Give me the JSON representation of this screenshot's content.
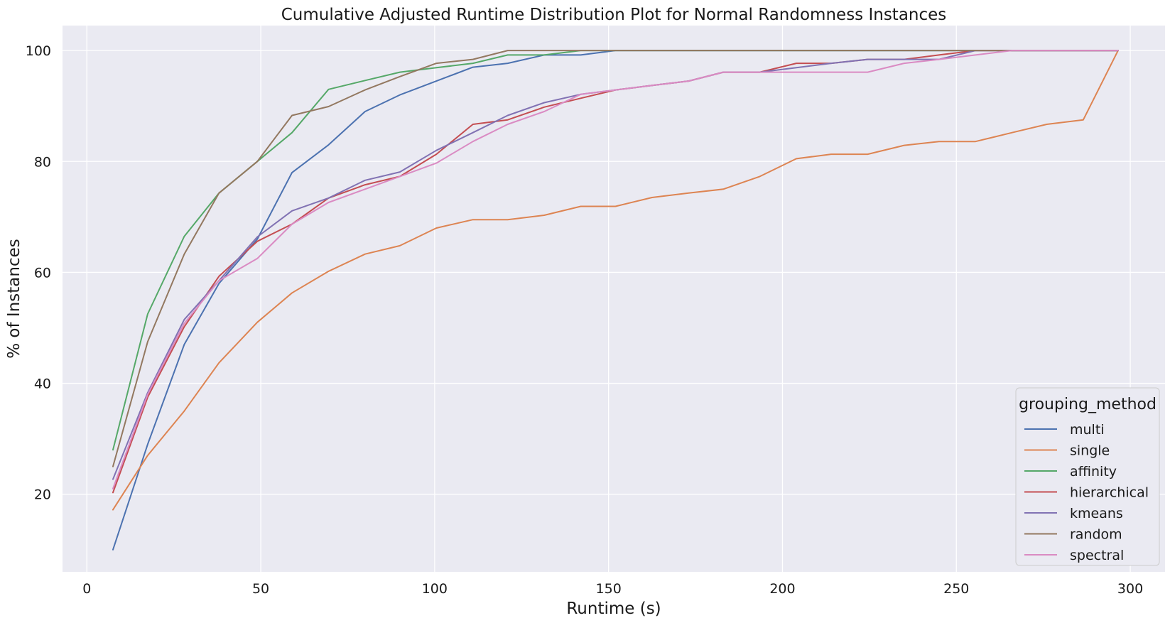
{
  "chart_data": {
    "type": "line",
    "title": "Cumulative Adjusted Runtime Distribution Plot for Normal Randomness Instances",
    "xlabel": "Runtime (s)",
    "ylabel": "% of Instances",
    "xlim": [
      -7,
      310
    ],
    "ylim": [
      6,
      104.5
    ],
    "xticks": [
      0,
      50,
      100,
      150,
      200,
      250,
      300
    ],
    "yticks": [
      20,
      40,
      60,
      80,
      100
    ],
    "grid": true,
    "background": "#eaeaf2",
    "gridcolor": "#ffffff",
    "legend": {
      "title": "grouping_method",
      "placement": "bottom-right"
    },
    "x": [
      7.5,
      17.5,
      28,
      38,
      49,
      59,
      69.5,
      80,
      90,
      100.5,
      111,
      121,
      131.5,
      142,
      152,
      162.5,
      173,
      183,
      193.5,
      204,
      214,
      224.5,
      235,
      245,
      255.5,
      266,
      276,
      286.5,
      296.5
    ],
    "series": [
      {
        "name": "multi",
        "color": "#4c72b0",
        "values": [
          10,
          29,
          47,
          58,
          66,
          78,
          83,
          89,
          92,
          94.5,
          97,
          97.7,
          99.2,
          99.2,
          100,
          100,
          100,
          100,
          100,
          100,
          100,
          100,
          100,
          100,
          100,
          100,
          100,
          100,
          100
        ]
      },
      {
        "name": "single",
        "color": "#dd8452",
        "values": [
          17.2,
          27,
          35,
          43.7,
          51,
          56.3,
          60.2,
          63.3,
          64.8,
          68,
          69.5,
          69.5,
          70.3,
          71.9,
          71.9,
          73.5,
          74.3,
          75,
          77.3,
          80.5,
          81.3,
          81.3,
          82.9,
          83.6,
          83.6,
          85.2,
          86.7,
          87.5,
          100
        ]
      },
      {
        "name": "affinity",
        "color": "#55a868",
        "values": [
          28,
          52.5,
          66.5,
          74.3,
          80,
          85.2,
          93,
          94.6,
          96.1,
          96.9,
          97.7,
          99.2,
          99.2,
          100,
          100,
          100,
          100,
          100,
          100,
          100,
          100,
          100,
          100,
          100,
          100,
          100,
          100,
          100,
          100
        ]
      },
      {
        "name": "hierarchical",
        "color": "#c44e52",
        "values": [
          20.3,
          37.5,
          50.2,
          59.3,
          65.6,
          68.7,
          73.4,
          75.8,
          77.3,
          81.3,
          86.7,
          87.5,
          89.8,
          91.4,
          92.9,
          93.7,
          94.5,
          96.1,
          96.1,
          97.7,
          97.7,
          98.4,
          98.4,
          99.2,
          100,
          100,
          100,
          100,
          100
        ]
      },
      {
        "name": "kmeans",
        "color": "#8172b3",
        "values": [
          22.7,
          38.3,
          51.5,
          58.5,
          66.4,
          71.1,
          73.4,
          76.6,
          78.1,
          82,
          85.2,
          88.3,
          90.6,
          92.1,
          92.9,
          93.7,
          94.5,
          96.1,
          96.1,
          96.9,
          97.7,
          98.4,
          98.4,
          98.4,
          100,
          100,
          100,
          100,
          100
        ]
      },
      {
        "name": "random",
        "color": "#937860",
        "values": [
          25,
          47.5,
          63.3,
          74.3,
          80,
          88.3,
          89.9,
          92.9,
          95.3,
          97.7,
          98.4,
          100,
          100,
          100,
          100,
          100,
          100,
          100,
          100,
          100,
          100,
          100,
          100,
          100,
          100,
          100,
          100,
          100,
          100
        ]
      },
      {
        "name": "spectral",
        "color": "#da8bc3",
        "values": [
          21,
          38,
          50.8,
          58.5,
          62.5,
          68.7,
          72.6,
          75,
          77.3,
          79.7,
          83.6,
          86.7,
          89,
          92.1,
          92.9,
          93.7,
          94.5,
          96.1,
          96.1,
          96.1,
          96.1,
          96.1,
          97.7,
          98.4,
          99.2,
          100,
          100,
          100,
          100
        ]
      }
    ]
  }
}
